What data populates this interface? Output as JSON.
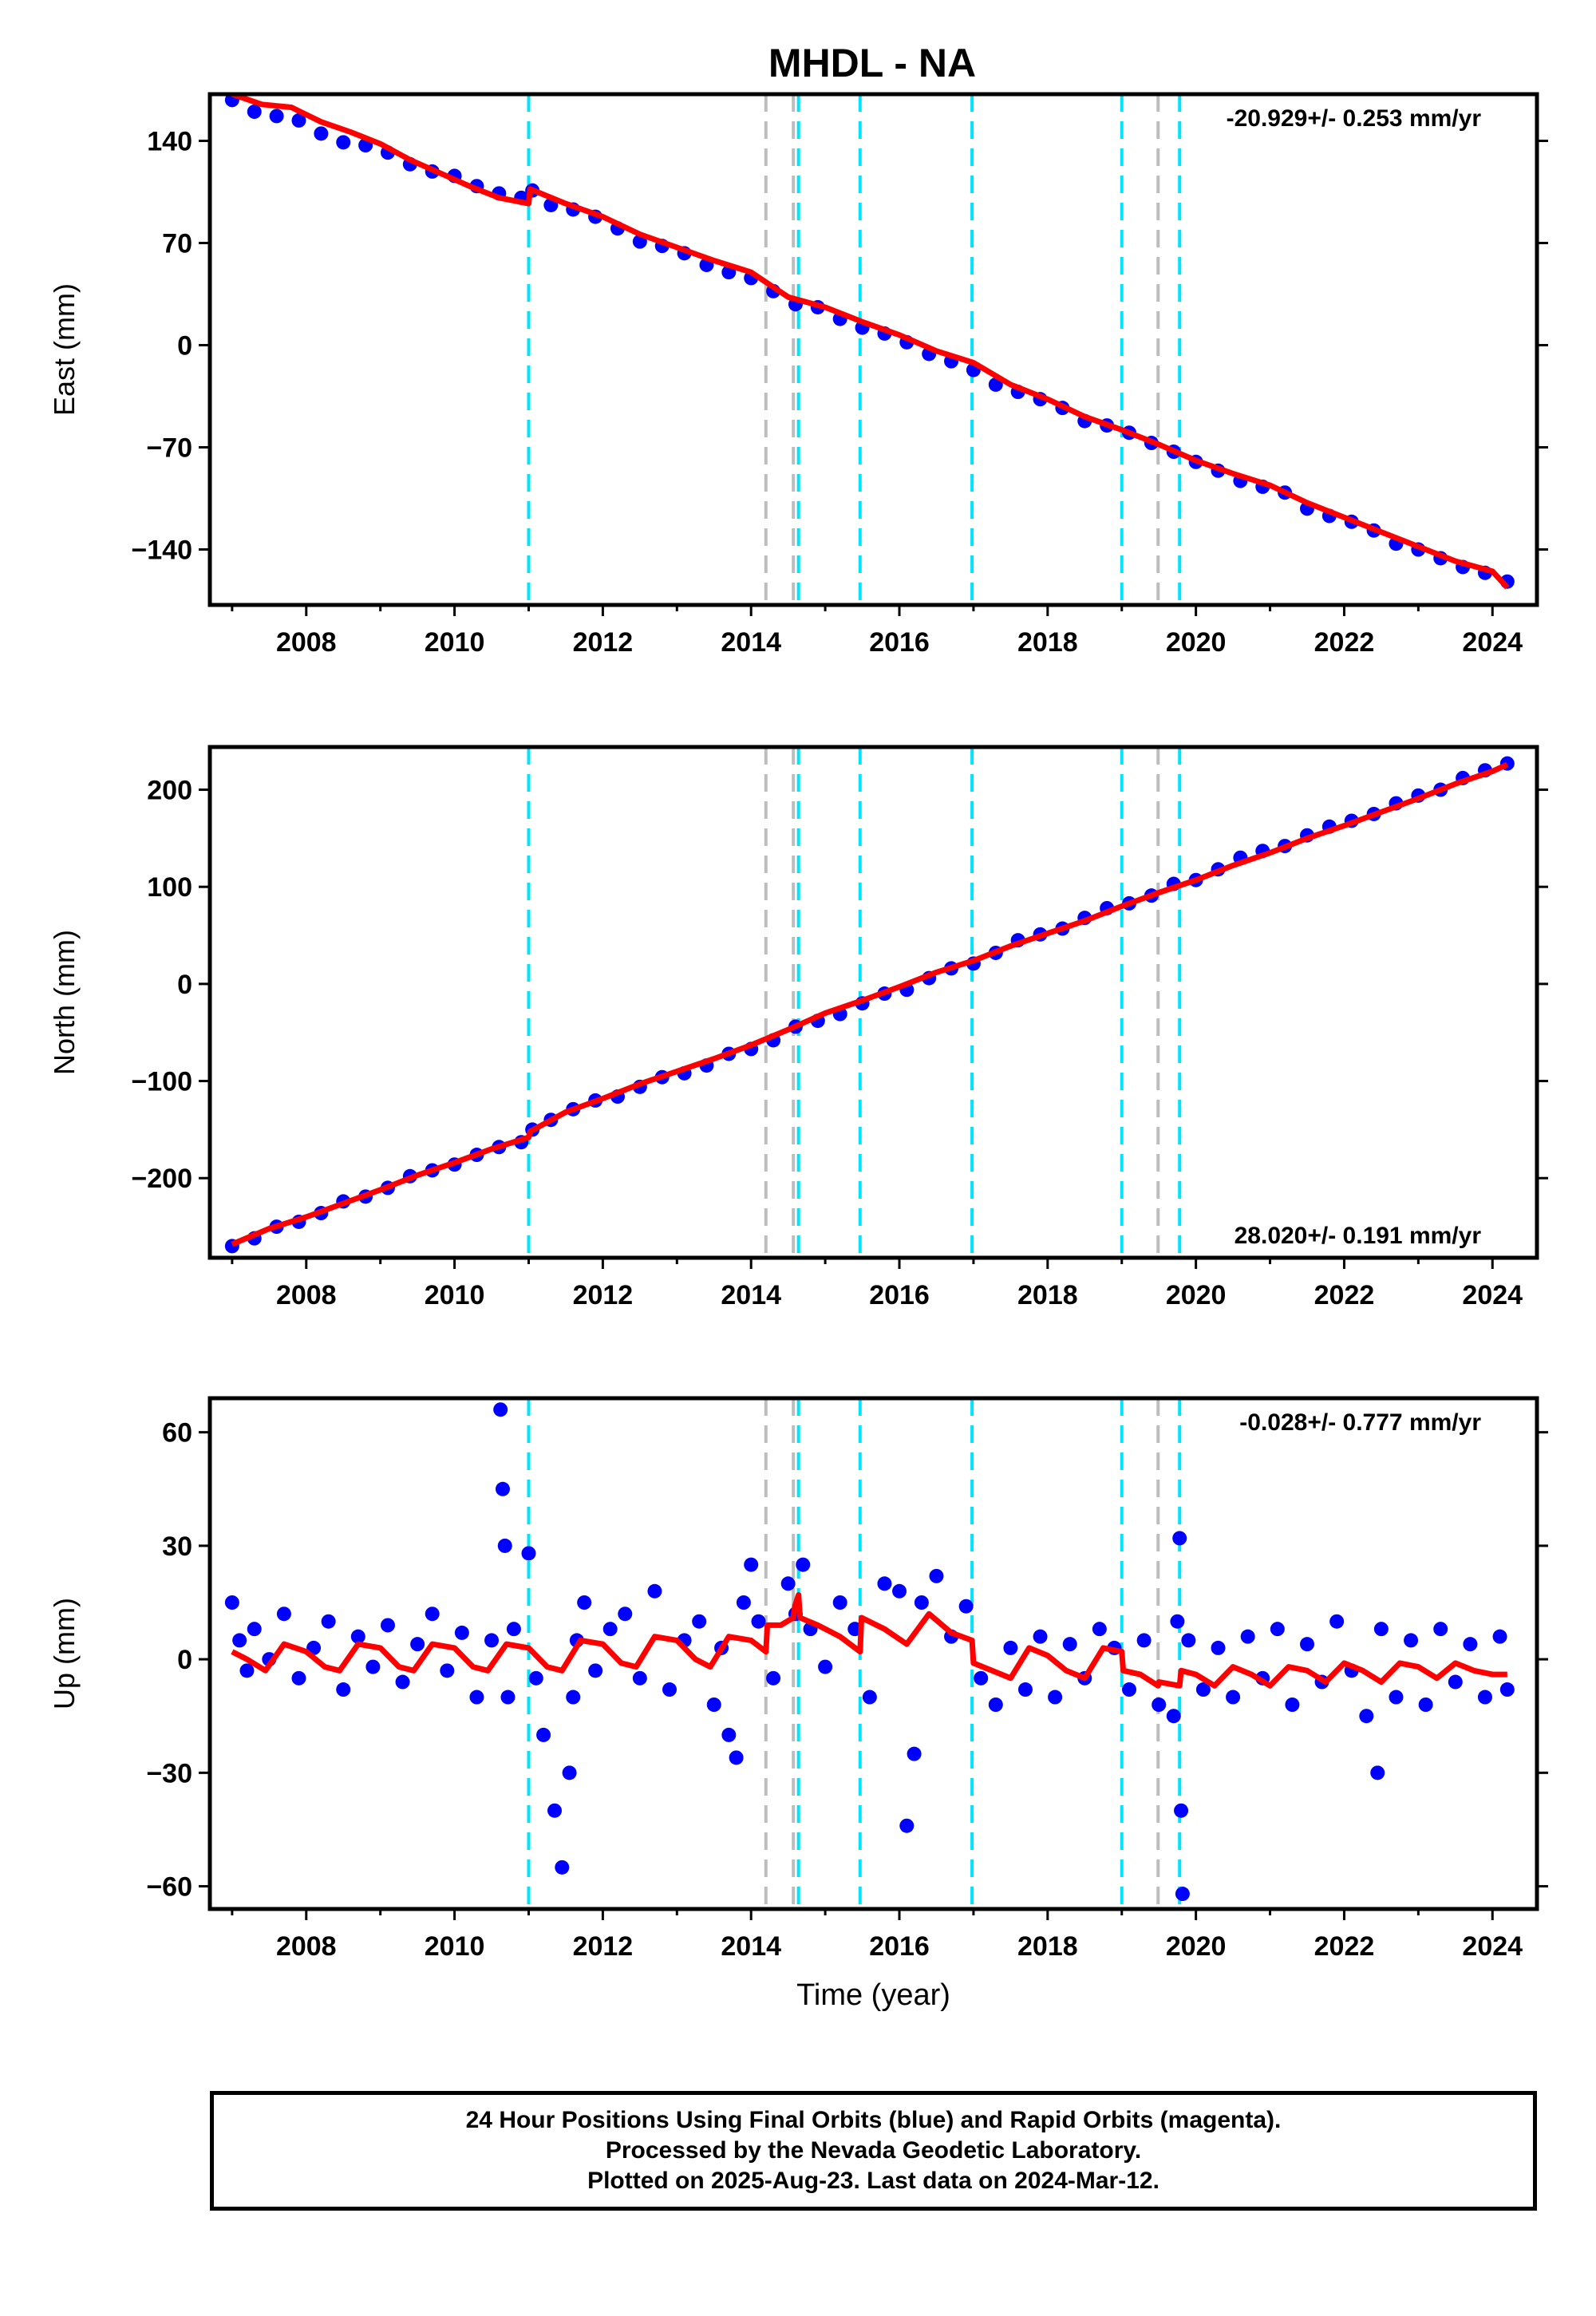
{
  "title": "MHDL - NA",
  "chart_data": [
    {
      "type": "scatter",
      "id": "east",
      "ylabel": "East (mm)",
      "xlim": [
        2006.7,
        2024.6
      ],
      "ylim": [
        -178,
        172
      ],
      "yticks": [
        140,
        70,
        0,
        -70,
        -140
      ],
      "ytick_labels": [
        "140",
        "70",
        "0",
        "−70",
        "−140"
      ],
      "xticks": [
        2008,
        2010,
        2012,
        2014,
        2016,
        2018,
        2020,
        2022,
        2024
      ],
      "rate_text": "-20.929+/- 0.253 mm/yr",
      "rate_position": "top-right",
      "series": [
        {
          "role": "observations",
          "color": "#0000ff",
          "x": [
            2007.0,
            2007.3,
            2007.6,
            2007.9,
            2008.2,
            2008.5,
            2008.8,
            2009.1,
            2009.4,
            2009.7,
            2010.0,
            2010.3,
            2010.6,
            2010.9,
            2011.05,
            2011.3,
            2011.6,
            2011.9,
            2012.2,
            2012.5,
            2012.8,
            2013.1,
            2013.4,
            2013.7,
            2014.0,
            2014.3,
            2014.6,
            2014.9,
            2015.2,
            2015.5,
            2015.8,
            2016.1,
            2016.4,
            2016.7,
            2017.0,
            2017.3,
            2017.6,
            2017.9,
            2018.2,
            2018.5,
            2018.8,
            2019.1,
            2019.4,
            2019.7,
            2020.0,
            2020.3,
            2020.6,
            2020.9,
            2021.2,
            2021.5,
            2021.8,
            2022.1,
            2022.4,
            2022.7,
            2023.0,
            2023.3,
            2023.6,
            2023.9,
            2024.2
          ],
          "y": [
            168,
            160,
            157,
            154,
            145,
            139,
            137,
            132,
            124,
            119,
            116,
            109,
            104,
            101,
            106,
            96,
            93,
            88,
            80,
            71,
            68,
            63,
            55,
            50,
            46,
            37,
            28,
            26,
            18,
            12,
            8,
            2,
            -6,
            -11,
            -17,
            -27,
            -32,
            -37,
            -43,
            -52,
            -55,
            -60,
            -67,
            -73,
            -80,
            -86,
            -93,
            -97,
            -101,
            -112,
            -117,
            -121,
            -127,
            -136,
            -140,
            -146,
            -152,
            -156,
            -162
          ]
        },
        {
          "role": "model",
          "color": "#ff0000",
          "x": [
            2007.0,
            2007.4,
            2007.8,
            2008.2,
            2008.6,
            2009.0,
            2009.4,
            2009.8,
            2010.2,
            2010.6,
            2011.0,
            2011.02,
            2011.5,
            2012.0,
            2012.5,
            2013.0,
            2013.5,
            2014.0,
            2014.5,
            2015.0,
            2015.5,
            2016.0,
            2016.5,
            2017.0,
            2017.5,
            2018.0,
            2018.5,
            2019.0,
            2019.5,
            2020.0,
            2020.5,
            2021.0,
            2021.5,
            2022.0,
            2022.5,
            2023.0,
            2023.5,
            2024.0,
            2024.2
          ],
          "y": [
            172,
            165,
            163,
            153,
            146,
            138,
            127,
            118,
            109,
            101,
            97,
            107,
            97,
            88,
            76,
            67,
            58,
            50,
            33,
            26,
            16,
            7,
            -4,
            -12,
            -27,
            -37,
            -49,
            -58,
            -68,
            -79,
            -88,
            -96,
            -108,
            -118,
            -128,
            -138,
            -148,
            -155,
            -166
          ]
        }
      ],
      "offsets_cyan": [
        2011.0,
        2014.64,
        2015.47,
        2016.98,
        2019.0,
        2019.78
      ],
      "offsets_grey": [
        2014.2,
        2014.57,
        2019.49
      ]
    },
    {
      "type": "scatter",
      "id": "north",
      "ylabel": "North (mm)",
      "xlim": [
        2006.7,
        2024.6
      ],
      "ylim": [
        -282,
        244
      ],
      "yticks": [
        200,
        100,
        0,
        -100,
        -200
      ],
      "ytick_labels": [
        "200",
        "100",
        "0",
        "−100",
        "−200"
      ],
      "xticks": [
        2008,
        2010,
        2012,
        2014,
        2016,
        2018,
        2020,
        2022,
        2024
      ],
      "rate_text": "28.020+/- 0.191 mm/yr",
      "rate_position": "bottom-right",
      "series": [
        {
          "role": "observations",
          "color": "#0000ff",
          "x": [
            2007.0,
            2007.3,
            2007.6,
            2007.9,
            2008.2,
            2008.5,
            2008.8,
            2009.1,
            2009.4,
            2009.7,
            2010.0,
            2010.3,
            2010.6,
            2010.9,
            2011.05,
            2011.3,
            2011.6,
            2011.9,
            2012.2,
            2012.5,
            2012.8,
            2013.1,
            2013.4,
            2013.7,
            2014.0,
            2014.3,
            2014.6,
            2014.9,
            2015.2,
            2015.5,
            2015.8,
            2016.1,
            2016.4,
            2016.7,
            2017.0,
            2017.3,
            2017.6,
            2017.9,
            2018.2,
            2018.5,
            2018.8,
            2019.1,
            2019.4,
            2019.7,
            2020.0,
            2020.3,
            2020.6,
            2020.9,
            2021.2,
            2021.5,
            2021.8,
            2022.1,
            2022.4,
            2022.7,
            2023.0,
            2023.3,
            2023.6,
            2023.9,
            2024.2
          ],
          "y": [
            -270,
            -262,
            -250,
            -245,
            -236,
            -224,
            -219,
            -210,
            -198,
            -192,
            -186,
            -176,
            -168,
            -163,
            -150,
            -140,
            -129,
            -120,
            -116,
            -106,
            -96,
            -92,
            -84,
            -72,
            -67,
            -58,
            -44,
            -38,
            -31,
            -20,
            -10,
            -6,
            6,
            16,
            21,
            32,
            45,
            51,
            57,
            68,
            78,
            83,
            91,
            103,
            107,
            118,
            130,
            137,
            142,
            153,
            162,
            168,
            175,
            186,
            194,
            200,
            212,
            220,
            227
          ]
        },
        {
          "role": "model",
          "color": "#ff0000",
          "x": [
            2007.0,
            2007.5,
            2008.0,
            2008.5,
            2009.0,
            2009.5,
            2010.0,
            2010.5,
            2011.0,
            2011.02,
            2011.5,
            2012.0,
            2012.5,
            2013.0,
            2013.5,
            2014.0,
            2014.5,
            2015.0,
            2015.5,
            2016.0,
            2016.5,
            2017.0,
            2017.5,
            2018.0,
            2018.5,
            2019.0,
            2019.5,
            2020.0,
            2020.5,
            2021.0,
            2021.5,
            2022.0,
            2022.5,
            2023.0,
            2023.5,
            2024.0,
            2024.2
          ],
          "y": [
            -268,
            -252,
            -240,
            -226,
            -212,
            -197,
            -184,
            -170,
            -158,
            -152,
            -132,
            -118,
            -103,
            -90,
            -77,
            -63,
            -47,
            -30,
            -17,
            -3,
            12,
            24,
            39,
            52,
            65,
            80,
            94,
            107,
            122,
            135,
            150,
            163,
            177,
            191,
            206,
            219,
            226
          ]
        }
      ],
      "offsets_cyan": [
        2011.0,
        2014.64,
        2015.47,
        2016.98,
        2019.0,
        2019.78
      ],
      "offsets_grey": [
        2014.2,
        2014.57,
        2019.49
      ]
    },
    {
      "type": "scatter",
      "id": "up",
      "ylabel": "Up (mm)",
      "xlabel": "Time (year)",
      "xlim": [
        2006.7,
        2024.6
      ],
      "ylim": [
        -66,
        69
      ],
      "yticks": [
        60,
        30,
        0,
        -30,
        -60
      ],
      "ytick_labels": [
        "60",
        "30",
        "0",
        "−30",
        "−60"
      ],
      "xticks": [
        2008,
        2010,
        2012,
        2014,
        2016,
        2018,
        2020,
        2022,
        2024
      ],
      "rate_text": "-0.028+/- 0.777 mm/yr",
      "rate_position": "top-right",
      "series": [
        {
          "role": "observations",
          "color": "#0000ff",
          "x": [
            2007.0,
            2007.1,
            2007.2,
            2007.3,
            2007.5,
            2007.7,
            2007.9,
            2008.1,
            2008.3,
            2008.5,
            2008.7,
            2008.9,
            2009.1,
            2009.3,
            2009.5,
            2009.7,
            2009.9,
            2010.1,
            2010.3,
            2010.5,
            2010.62,
            2010.65,
            2010.68,
            2010.72,
            2010.8,
            2011.0,
            2011.1,
            2011.2,
            2011.35,
            2011.45,
            2011.55,
            2011.6,
            2011.65,
            2011.75,
            2011.9,
            2012.1,
            2012.3,
            2012.5,
            2012.7,
            2012.9,
            2013.1,
            2013.3,
            2013.5,
            2013.6,
            2013.7,
            2013.8,
            2013.9,
            2014.0,
            2014.1,
            2014.3,
            2014.5,
            2014.6,
            2014.7,
            2014.8,
            2015.0,
            2015.2,
            2015.4,
            2015.6,
            2015.8,
            2016.0,
            2016.1,
            2016.2,
            2016.3,
            2016.5,
            2016.7,
            2016.9,
            2017.1,
            2017.3,
            2017.5,
            2017.7,
            2017.9,
            2018.1,
            2018.3,
            2018.5,
            2018.7,
            2018.9,
            2019.1,
            2019.3,
            2019.5,
            2019.7,
            2019.75,
            2019.78,
            2019.8,
            2019.82,
            2019.9,
            2020.1,
            2020.3,
            2020.5,
            2020.7,
            2020.9,
            2021.1,
            2021.3,
            2021.5,
            2021.7,
            2021.9,
            2022.1,
            2022.3,
            2022.45,
            2022.5,
            2022.7,
            2022.9,
            2023.1,
            2023.3,
            2023.5,
            2023.7,
            2023.9,
            2024.1,
            2024.2
          ],
          "y": [
            15,
            5,
            -3,
            8,
            0,
            12,
            -5,
            3,
            10,
            -8,
            6,
            -2,
            9,
            -6,
            4,
            12,
            -3,
            7,
            -10,
            5,
            66,
            45,
            30,
            -10,
            8,
            28,
            -5,
            -20,
            -40,
            -55,
            -30,
            -10,
            5,
            15,
            -3,
            8,
            12,
            -5,
            18,
            -8,
            5,
            10,
            -12,
            3,
            -20,
            -26,
            15,
            25,
            10,
            -5,
            20,
            12,
            25,
            8,
            -2,
            15,
            8,
            -10,
            20,
            18,
            -44,
            -25,
            15,
            22,
            6,
            14,
            -5,
            -12,
            3,
            -8,
            6,
            -10,
            4,
            -5,
            8,
            3,
            -8,
            5,
            -12,
            -15,
            10,
            32,
            -40,
            -62,
            5,
            -8,
            3,
            -10,
            6,
            -5,
            8,
            -12,
            4,
            -6,
            10,
            -3,
            -15,
            -30,
            8,
            -10,
            5,
            -12,
            8,
            -6,
            4,
            -10,
            6,
            -8
          ]
        },
        {
          "role": "model",
          "color": "#ff0000",
          "x": [
            2007.0,
            2007.2,
            2007.45,
            2007.7,
            2008.0,
            2008.25,
            2008.45,
            2008.7,
            2009.0,
            2009.25,
            2009.45,
            2009.7,
            2010.0,
            2010.25,
            2010.45,
            2010.7,
            2011.0,
            2011.25,
            2011.45,
            2011.7,
            2012.0,
            2012.25,
            2012.45,
            2012.7,
            2013.0,
            2013.25,
            2013.45,
            2013.7,
            2014.0,
            2014.2,
            2014.22,
            2014.4,
            2014.57,
            2014.59,
            2014.64,
            2014.66,
            2014.9,
            2015.2,
            2015.47,
            2015.49,
            2015.8,
            2016.1,
            2016.4,
            2016.7,
            2016.98,
            2017.0,
            2017.25,
            2017.5,
            2017.75,
            2018.0,
            2018.25,
            2018.5,
            2018.75,
            2019.0,
            2019.02,
            2019.25,
            2019.49,
            2019.5,
            2019.78,
            2019.8,
            2020.0,
            2020.25,
            2020.5,
            2020.75,
            2021.0,
            2021.25,
            2021.5,
            2021.75,
            2022.0,
            2022.25,
            2022.5,
            2022.75,
            2023.0,
            2023.25,
            2023.5,
            2023.75,
            2024.0,
            2024.2
          ],
          "y": [
            2,
            0,
            -3,
            4,
            2,
            -2,
            -3,
            4,
            3,
            -2,
            -3,
            4,
            3,
            -2,
            -3,
            4,
            3,
            -2,
            -3,
            5,
            4,
            -1,
            -2,
            6,
            5,
            0,
            -2,
            6,
            5,
            2,
            9,
            9,
            11,
            14,
            17,
            11,
            9,
            6,
            2,
            11,
            8,
            4,
            12,
            7,
            5,
            -1,
            -3,
            -5,
            3,
            1,
            -3,
            -5,
            3,
            2,
            -3,
            -4,
            -7,
            -6,
            -7,
            -3,
            -4,
            -7,
            -2,
            -4,
            -7,
            -2,
            -3,
            -6,
            -1,
            -3,
            -6,
            -1,
            -2,
            -5,
            -1,
            -3,
            -4,
            -4
          ]
        }
      ],
      "offsets_cyan": [
        2011.0,
        2014.64,
        2015.47,
        2016.98,
        2019.0,
        2019.78
      ],
      "offsets_grey": [
        2014.2,
        2014.57,
        2019.49
      ]
    }
  ],
  "footer": {
    "line1": "24 Hour Positions Using Final Orbits (blue) and Rapid Orbits (magenta).",
    "line2": "Processed by the Nevada Geodetic Laboratory.",
    "line3": "Plotted on 2025-Aug-23. Last data on 2024-Mar-12."
  }
}
